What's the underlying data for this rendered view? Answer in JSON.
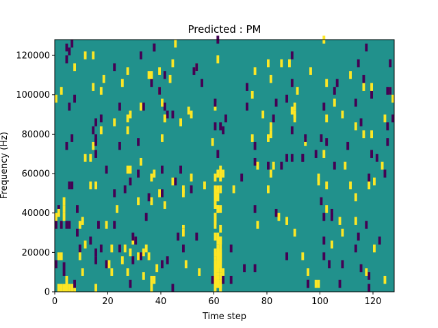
{
  "chart_data": {
    "type": "heatmap",
    "title": "Predicted : PM",
    "xlabel": "Time step",
    "ylabel": "Frequency (Hz)",
    "xlim": [
      0,
      128
    ],
    "ylim": [
      0,
      128000
    ],
    "xticks": [
      "0",
      "20",
      "40",
      "60",
      "80",
      "100",
      "120"
    ],
    "yticks": [
      "0",
      "20000",
      "40000",
      "60000",
      "80000",
      "100000",
      "120000"
    ],
    "background_value": 0,
    "colors": {
      "low": "#440154",
      "mid": "#21918c",
      "high": "#fde725"
    },
    "cells": [
      {
        "x": 1,
        "y0": 0,
        "y1": 4000,
        "v": 1
      },
      {
        "x": 2,
        "y0": 0,
        "y1": 4000,
        "v": 1
      },
      {
        "x": 3,
        "y0": 0,
        "y1": 4000,
        "v": 1
      },
      {
        "x": 4,
        "y0": 0,
        "y1": 4000,
        "v": 1
      },
      {
        "x": 5,
        "y0": 0,
        "y1": 4000,
        "v": 1
      },
      {
        "x": 6,
        "y0": 0,
        "y1": 4000,
        "v": 1
      },
      {
        "x": 7,
        "y0": 0,
        "y1": 4000,
        "v": 1
      },
      {
        "x": 4,
        "y0": 4000,
        "y1": 8000,
        "v": 1
      },
      {
        "x": 3,
        "y0": 8000,
        "y1": 15000,
        "v": -1
      },
      {
        "x": 2,
        "y0": 16000,
        "y1": 20000,
        "v": 1
      },
      {
        "x": 2,
        "y0": 32000,
        "y1": 36000,
        "v": -1
      },
      {
        "x": 4,
        "y0": 32000,
        "y1": 36000,
        "v": -1
      },
      {
        "x": 3,
        "y0": 36000,
        "y1": 40000,
        "v": 1
      },
      {
        "x": 5,
        "y0": 52000,
        "y1": 56000,
        "v": -1
      },
      {
        "x": 6,
        "y0": 52000,
        "y1": 56000,
        "v": -1
      },
      {
        "x": 2,
        "y0": 100000,
        "y1": 104000,
        "v": 1
      },
      {
        "x": 4,
        "y0": 116000,
        "y1": 120000,
        "v": -1
      },
      {
        "x": 5,
        "y0": 120000,
        "y1": 124000,
        "v": -1
      },
      {
        "x": 6,
        "y0": 124000,
        "y1": 128000,
        "v": -1
      },
      {
        "x": 5,
        "y0": 92000,
        "y1": 96000,
        "v": -1
      },
      {
        "x": 6,
        "y0": 76000,
        "y1": 80000,
        "v": -1
      },
      {
        "x": 7,
        "y0": 96000,
        "y1": 100000,
        "v": -1
      },
      {
        "x": 8,
        "y0": 40000,
        "y1": 44000,
        "v": -1
      },
      {
        "x": 9,
        "y0": 20000,
        "y1": 24000,
        "v": -1
      },
      {
        "x": 9,
        "y0": 32000,
        "y1": 36000,
        "v": 1
      },
      {
        "x": 13,
        "y0": 24000,
        "y1": 28000,
        "v": -1
      },
      {
        "x": 13,
        "y0": 52000,
        "y1": 56000,
        "v": 1
      },
      {
        "x": 14,
        "y0": 80000,
        "y1": 84000,
        "v": -1
      },
      {
        "x": 14,
        "y0": 72000,
        "y1": 76000,
        "v": 1
      },
      {
        "x": 15,
        "y0": 52000,
        "y1": 56000,
        "v": 1
      },
      {
        "x": 16,
        "y0": 32000,
        "y1": 36000,
        "v": -1
      },
      {
        "x": 17,
        "y0": 80000,
        "y1": 84000,
        "v": 1
      },
      {
        "x": 17,
        "y0": 20000,
        "y1": 24000,
        "v": -1
      },
      {
        "x": 19,
        "y0": 60000,
        "y1": 64000,
        "v": -1
      },
      {
        "x": 19,
        "y0": 32000,
        "y1": 36000,
        "v": 1
      },
      {
        "x": 21,
        "y0": 8000,
        "y1": 12000,
        "v": 1
      },
      {
        "x": 19,
        "y0": 12000,
        "y1": 16000,
        "v": -1
      },
      {
        "x": 20,
        "y0": 12000,
        "y1": 16000,
        "v": 1
      },
      {
        "x": 22,
        "y0": 48000,
        "y1": 52000,
        "v": -1
      },
      {
        "x": 23,
        "y0": 40000,
        "y1": 44000,
        "v": 1
      },
      {
        "x": 24,
        "y0": 20000,
        "y1": 24000,
        "v": -1
      },
      {
        "x": 25,
        "y0": 104000,
        "y1": 108000,
        "v": 1
      },
      {
        "x": 24,
        "y0": 92000,
        "y1": 96000,
        "v": -1
      },
      {
        "x": 26,
        "y0": 20000,
        "y1": 24000,
        "v": 1
      },
      {
        "x": 27,
        "y0": 8000,
        "y1": 12000,
        "v": 1
      },
      {
        "x": 28,
        "y0": 88000,
        "y1": 92000,
        "v": 1
      },
      {
        "x": 29,
        "y0": 24000,
        "y1": 28000,
        "v": 1
      },
      {
        "x": 31,
        "y0": 16000,
        "y1": 20000,
        "v": 1
      },
      {
        "x": 32,
        "y0": 64000,
        "y1": 68000,
        "v": 1
      },
      {
        "x": 33,
        "y0": 92000,
        "y1": 96000,
        "v": -1
      },
      {
        "x": 34,
        "y0": 20000,
        "y1": 24000,
        "v": 1
      },
      {
        "x": 35,
        "y0": 16000,
        "y1": 20000,
        "v": 1
      },
      {
        "x": 36,
        "y0": 0,
        "y1": 8000,
        "v": 1
      },
      {
        "x": 37,
        "y0": 4000,
        "y1": 8000,
        "v": 1
      },
      {
        "x": 36,
        "y0": 56000,
        "y1": 60000,
        "v": 1
      },
      {
        "x": 36,
        "y0": 44000,
        "y1": 48000,
        "v": 1
      },
      {
        "x": 39,
        "y0": 100000,
        "y1": 104000,
        "v": 1
      },
      {
        "x": 41,
        "y0": 92000,
        "y1": 96000,
        "v": -1
      },
      {
        "x": 42,
        "y0": 88000,
        "y1": 92000,
        "v": -1
      }
    ],
    "note_cells_generated": true
  }
}
